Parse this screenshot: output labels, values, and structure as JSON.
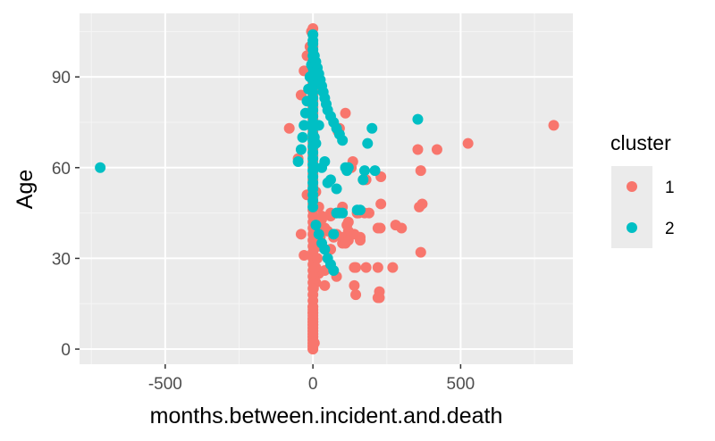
{
  "chart_data": {
    "type": "scatter",
    "title": "",
    "xlabel": "months.between.incident.and.death",
    "ylabel": "Age",
    "xlim": [
      -790,
      880
    ],
    "ylim": [
      -5,
      111
    ],
    "x_ticks": [
      -500,
      0,
      500
    ],
    "x_tick_labels": [
      "-500",
      "0",
      "500"
    ],
    "y_ticks": [
      0,
      30,
      60,
      90
    ],
    "y_tick_labels": [
      "0",
      "30",
      "60",
      "90"
    ],
    "grid": true,
    "legend": {
      "title": "cluster",
      "position": "right",
      "entries": [
        {
          "label": "1",
          "color": "#F8766D"
        },
        {
          "label": "2",
          "color": "#00BFC4"
        }
      ]
    },
    "series": [
      {
        "name": "1",
        "color": "#F8766D",
        "x": [
          815,
          525,
          420,
          355,
          365,
          370,
          365,
          360,
          280,
          300,
          270,
          230,
          230,
          228,
          225,
          220,
          220,
          190,
          180,
          175,
          160,
          150,
          145,
          140,
          140,
          135,
          130,
          120,
          115,
          110,
          100,
          90,
          85,
          80,
          70,
          60,
          50,
          40,
          30,
          20,
          10,
          5,
          -5,
          -10,
          -20,
          -30,
          -40,
          -50,
          -80,
          180,
          150,
          120,
          100,
          80,
          60,
          40,
          120,
          140,
          160,
          100,
          40,
          20,
          10,
          5,
          2,
          0,
          0,
          0,
          0,
          0,
          0,
          0,
          0,
          0,
          0,
          0,
          0,
          0,
          0,
          0,
          0,
          0,
          0,
          0,
          0,
          0,
          0,
          0,
          0,
          0,
          0,
          0,
          0,
          0,
          0,
          0,
          0,
          0,
          0,
          0,
          0,
          0,
          0,
          0,
          0,
          0,
          0,
          0,
          0,
          0,
          0,
          0,
          0,
          0,
          0,
          0,
          0,
          0,
          0,
          0,
          0,
          0,
          0,
          0,
          0,
          0,
          0,
          0,
          0,
          0,
          0,
          0,
          0,
          0,
          0,
          0,
          0,
          0,
          5,
          10,
          15,
          20,
          25,
          40,
          60,
          80,
          110,
          145,
          155,
          170,
          220,
          225,
          -20,
          -30,
          -40,
          30,
          60
        ],
        "y": [
          74,
          68,
          66,
          66,
          59,
          48,
          32,
          47,
          41,
          40,
          27,
          57,
          48,
          40,
          19,
          17,
          27,
          45,
          27,
          45,
          37,
          45,
          18,
          21,
          27,
          62,
          60,
          39,
          41,
          78,
          35,
          73,
          72,
          45,
          37,
          45,
          39,
          40,
          43,
          47,
          52,
          95,
          105,
          100,
          97,
          92,
          84,
          63,
          73,
          56,
          45,
          42,
          37,
          24,
          33,
          26,
          36,
          38,
          36,
          47,
          21,
          25,
          22,
          23,
          20,
          106,
          104,
          100,
          98,
          96,
          94,
          92,
          90,
          88,
          86,
          84,
          82,
          80,
          78,
          76,
          74,
          72,
          70,
          68,
          66,
          64,
          62,
          60,
          58,
          56,
          54,
          52,
          50,
          48,
          46,
          44,
          42,
          40,
          38,
          36,
          34,
          32,
          30,
          28,
          26,
          24,
          22,
          20,
          18,
          16,
          14,
          12,
          10,
          9,
          8,
          7,
          6,
          5,
          4,
          3,
          2,
          1,
          0,
          0,
          1,
          2,
          3,
          4,
          5,
          6,
          7,
          8,
          9,
          10,
          11,
          12,
          13,
          14,
          2,
          27,
          30,
          34,
          37,
          40,
          44,
          38,
          35,
          27,
          45,
          56,
          40,
          17,
          51,
          31,
          38,
          44,
          33
        ],
        "x_extra_note": "",
        "r_count": 0
      },
      {
        "name": "2",
        "color": "#00BFC4",
        "x": [
          -720,
          355,
          200,
          185,
          210,
          175,
          170,
          120,
          115,
          110,
          100,
          90,
          80,
          70,
          60,
          50,
          40,
          30,
          20,
          10,
          5,
          0,
          0,
          0,
          0,
          0,
          0,
          0,
          0,
          0,
          0,
          0,
          0,
          0,
          0,
          0,
          0,
          0,
          0,
          0,
          0,
          0,
          0,
          0,
          0,
          0,
          0,
          0,
          0,
          0,
          0,
          -5,
          -10,
          -15,
          -20,
          -25,
          -30,
          -35,
          -40,
          -50,
          5,
          10,
          15,
          20,
          25,
          30,
          35,
          40,
          45,
          50,
          60,
          70,
          80,
          90,
          100,
          10,
          20,
          30,
          40,
          50,
          60,
          70,
          160,
          150,
          80
        ],
        "y": [
          60,
          76,
          73,
          68,
          59,
          59,
          56,
          60,
          59,
          60,
          45,
          45,
          45,
          38,
          56,
          55,
          62,
          60,
          74,
          68,
          70,
          104,
          102,
          101,
          99,
          97,
          95,
          93,
          91,
          89,
          87,
          85,
          83,
          81,
          79,
          77,
          75,
          73,
          71,
          69,
          67,
          65,
          63,
          61,
          59,
          57,
          55,
          53,
          51,
          49,
          47,
          94,
          90,
          86,
          82,
          78,
          74,
          70,
          66,
          62,
          97,
          95,
          93,
          91,
          89,
          87,
          85,
          83,
          81,
          79,
          77,
          75,
          73,
          71,
          69,
          41,
          38,
          35,
          33,
          30,
          28,
          26,
          46,
          46,
          53
        ]
      }
    ]
  }
}
